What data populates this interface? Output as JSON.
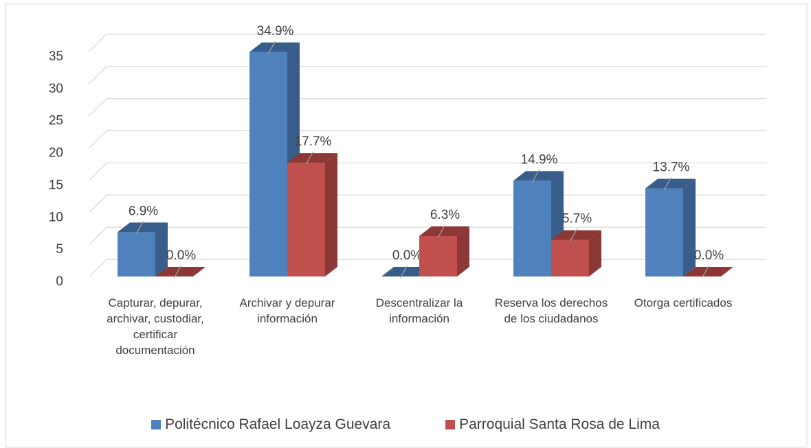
{
  "chart_data": {
    "type": "bar3d",
    "categories": [
      "Capturar, depurar, archivar, custodiar, certificar documentación",
      "Archivar y depurar información",
      "Descentralizar la información",
      "Reserva los derechos de los ciudadanos",
      "Otorga certificados"
    ],
    "series": [
      {
        "name": "Politécnico Rafael Loayza Guevara",
        "color": "#4f81bd",
        "side": "#385d8a",
        "values": [
          6.9,
          34.9,
          0.0,
          14.9,
          13.7
        ],
        "value_labels": [
          "6.9%",
          "34.9%",
          "0.0%",
          "14.9%",
          "13.7%"
        ]
      },
      {
        "name": "Parroquial Santa Rosa de Lima",
        "color": "#c0504d",
        "side": "#8c3836",
        "values": [
          0.0,
          17.7,
          6.3,
          5.7,
          0.0
        ],
        "value_labels": [
          "0.0%",
          "17.7%",
          "6.3%",
          "5.7%",
          "0.0%"
        ]
      }
    ],
    "ylim": [
      0,
      35
    ],
    "yticks": [
      0,
      5,
      10,
      15,
      20,
      25,
      30,
      35
    ],
    "grid": true,
    "legend": "bottom"
  }
}
